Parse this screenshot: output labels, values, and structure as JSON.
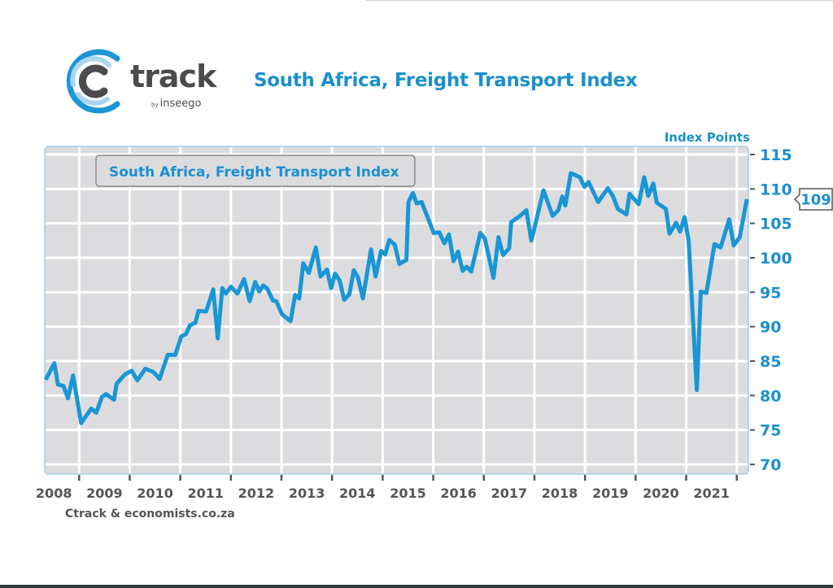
{
  "header": {
    "title": "South Africa, Freight Transport Index",
    "logo_text": "track",
    "logo_by": "by",
    "logo_brand": "inseego"
  },
  "source": "Ctrack & economists.co.za",
  "colors": {
    "line": "#1a96d4",
    "text_blue": "#1b8fce",
    "plot_bg": "#dcdcdf",
    "axis_text": "#555555"
  },
  "chart_data": {
    "type": "line",
    "title": "South Africa, Freight Transport Index",
    "legend": [
      "South Africa, Freight Transport Index"
    ],
    "legend_placement": "top-left",
    "ylabel": "Index Points",
    "y_axis_side": "right",
    "ylim": [
      70,
      115
    ],
    "yticks": [
      70,
      75,
      80,
      85,
      90,
      95,
      100,
      105,
      110,
      115
    ],
    "xlim": [
      2008.32,
      2022.23
    ],
    "xtick_labels": [
      "2008",
      "2009",
      "2010",
      "2011",
      "2012",
      "2013",
      "2014",
      "2015",
      "2016",
      "2017",
      "2018",
      "2019",
      "2020",
      "2021"
    ],
    "grid": true,
    "last_value_label": "109",
    "series": [
      {
        "name": "South Africa, Freight Transport Index",
        "x": [
          2008.34,
          2008.51,
          2008.58,
          2008.69,
          2008.78,
          2008.88,
          2009.04,
          2009.24,
          2009.34,
          2009.45,
          2009.53,
          2009.69,
          2009.74,
          2009.91,
          2010.04,
          2010.15,
          2010.31,
          2010.47,
          2010.59,
          2010.75,
          2010.9,
          2011.02,
          2011.11,
          2011.19,
          2011.3,
          2011.36,
          2011.51,
          2011.65,
          2011.74,
          2011.83,
          2011.9,
          2012.0,
          2012.13,
          2012.26,
          2012.37,
          2012.48,
          2012.56,
          2012.64,
          2012.72,
          2012.83,
          2012.9,
          2013.01,
          2013.18,
          2013.27,
          2013.35,
          2013.43,
          2013.54,
          2013.68,
          2013.77,
          2013.9,
          2013.98,
          2014.06,
          2014.15,
          2014.24,
          2014.34,
          2014.43,
          2014.51,
          2014.61,
          2014.77,
          2014.86,
          2014.97,
          2015.05,
          2015.13,
          2015.24,
          2015.33,
          2015.47,
          2015.51,
          2015.6,
          2015.67,
          2015.77,
          2016.01,
          2016.12,
          2016.22,
          2016.31,
          2016.4,
          2016.49,
          2016.58,
          2016.66,
          2016.75,
          2016.93,
          2017.02,
          2017.19,
          2017.29,
          2017.38,
          2017.5,
          2017.54,
          2017.7,
          2017.84,
          2017.94,
          2018.18,
          2018.36,
          2018.47,
          2018.55,
          2018.61,
          2018.72,
          2018.9,
          2018.99,
          2019.07,
          2019.26,
          2019.45,
          2019.55,
          2019.65,
          2019.82,
          2019.88,
          2020.06,
          2020.17,
          2020.25,
          2020.35,
          2020.42,
          2020.6,
          2020.67,
          2020.8,
          2020.88,
          2020.97,
          2021.05,
          2021.21,
          2021.29,
          2021.4,
          2021.56,
          2021.68,
          2021.85,
          2021.94,
          2022.06,
          2022.2
        ],
        "values": [
          82.3,
          84.7,
          81.6,
          81.4,
          79.6,
          82.9,
          76.0,
          78.1,
          77.5,
          79.8,
          80.2,
          79.4,
          81.7,
          83.1,
          83.6,
          82.2,
          83.9,
          83.4,
          82.4,
          85.9,
          85.9,
          88.6,
          88.9,
          90.2,
          90.6,
          92.3,
          92.2,
          95.4,
          88.3,
          95.6,
          94.8,
          95.8,
          94.8,
          96.9,
          93.7,
          96.5,
          95.1,
          96.0,
          95.5,
          93.8,
          93.7,
          91.8,
          90.8,
          94.6,
          94.1,
          99.2,
          97.8,
          101.5,
          97.3,
          98.3,
          95.6,
          97.7,
          96.7,
          93.9,
          94.7,
          98.2,
          97.2,
          94.1,
          101.2,
          97.3,
          101.0,
          100.5,
          102.6,
          101.9,
          99.1,
          99.7,
          108.1,
          109.4,
          107.9,
          108.1,
          103.6,
          103.7,
          102.1,
          103.4,
          99.5,
          100.9,
          98.1,
          98.7,
          98.0,
          103.6,
          102.8,
          97.1,
          103.0,
          100.4,
          101.4,
          105.2,
          106.0,
          106.9,
          102.5,
          109.8,
          106.1,
          106.9,
          108.9,
          107.6,
          112.3,
          111.7,
          110.3,
          111.0,
          108.1,
          110.1,
          109.0,
          107.1,
          106.3,
          109.3,
          107.8,
          111.7,
          109.0,
          110.8,
          108.0,
          107.1,
          103.5,
          105.1,
          103.8,
          105.9,
          102.4,
          80.8,
          95.1,
          94.9,
          102.0,
          101.5,
          105.6,
          101.8,
          103.0,
          108.5
        ]
      }
    ]
  }
}
